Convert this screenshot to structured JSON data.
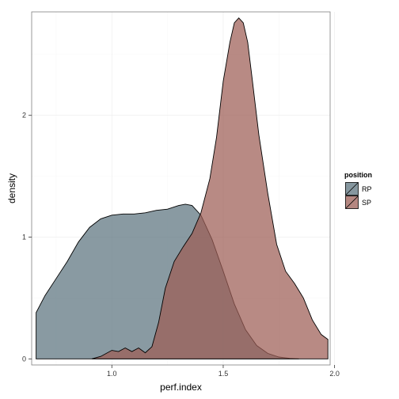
{
  "chart_data": {
    "type": "area",
    "subtype": "density",
    "title": "",
    "xlabel": "perf.index",
    "ylabel": "density",
    "xlim": [
      0.64,
      1.98
    ],
    "ylim": [
      -0.05,
      2.85
    ],
    "x_ticks": [
      1.0,
      1.5,
      2.0
    ],
    "x_tick_labels": [
      "1.0",
      "1.5",
      "2.0"
    ],
    "y_ticks": [
      0,
      1,
      2
    ],
    "y_tick_labels": [
      "0",
      "1",
      "2"
    ],
    "grid": true,
    "legend": {
      "title": "position",
      "placement": "right",
      "entries": [
        "RP",
        "SP"
      ]
    },
    "series": [
      {
        "name": "RP",
        "color": "#5b737e",
        "opacity": 0.72,
        "x": [
          0.66,
          0.66,
          0.7,
          0.75,
          0.8,
          0.85,
          0.9,
          0.95,
          1.0,
          1.05,
          1.1,
          1.15,
          1.2,
          1.25,
          1.3,
          1.33,
          1.36,
          1.4,
          1.45,
          1.5,
          1.55,
          1.6,
          1.65,
          1.7,
          1.75,
          1.8,
          1.84,
          1.84
        ],
        "y": [
          0,
          0.38,
          0.52,
          0.66,
          0.8,
          0.96,
          1.08,
          1.15,
          1.18,
          1.19,
          1.19,
          1.2,
          1.22,
          1.23,
          1.26,
          1.27,
          1.26,
          1.18,
          0.98,
          0.72,
          0.45,
          0.24,
          0.11,
          0.045,
          0.015,
          0.004,
          0.0,
          0
        ]
      },
      {
        "name": "SP",
        "color": "#9c5d55",
        "opacity": 0.72,
        "x": [
          0.91,
          0.95,
          1.0,
          1.03,
          1.06,
          1.09,
          1.12,
          1.15,
          1.18,
          1.21,
          1.24,
          1.28,
          1.32,
          1.36,
          1.4,
          1.44,
          1.47,
          1.5,
          1.53,
          1.55,
          1.57,
          1.59,
          1.61,
          1.63,
          1.66,
          1.7,
          1.74,
          1.78,
          1.82,
          1.86,
          1.9,
          1.94,
          1.97,
          1.97
        ],
        "y": [
          0.0,
          0.02,
          0.07,
          0.06,
          0.09,
          0.06,
          0.09,
          0.05,
          0.1,
          0.3,
          0.58,
          0.8,
          0.92,
          1.03,
          1.2,
          1.48,
          1.82,
          2.28,
          2.6,
          2.76,
          2.8,
          2.76,
          2.6,
          2.3,
          1.84,
          1.36,
          0.94,
          0.72,
          0.62,
          0.5,
          0.32,
          0.2,
          0.16,
          0
        ]
      }
    ]
  }
}
